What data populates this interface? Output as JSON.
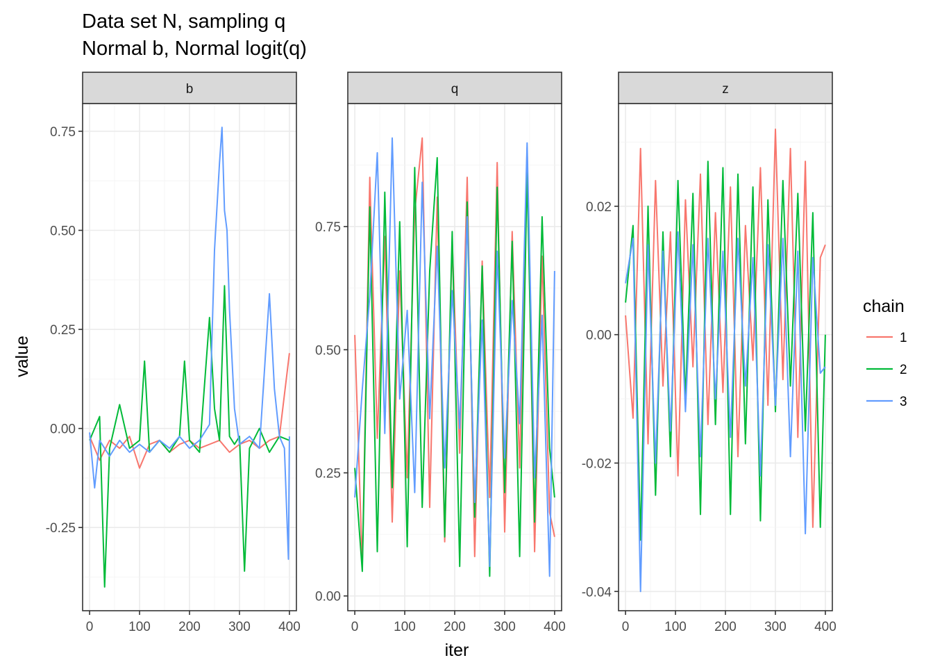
{
  "chart_data": {
    "type": "line",
    "title": "Data set N, sampling q",
    "subtitle": "Normal b, Normal logit(q)",
    "xlabel": "iter",
    "ylabel": "value",
    "legend": {
      "title": "chain",
      "placement": "right",
      "entries": [
        {
          "label": "1",
          "color": "#F8766D"
        },
        {
          "label": "2",
          "color": "#00BA38"
        },
        {
          "label": "3",
          "color": "#619CFF"
        }
      ]
    },
    "grid": true,
    "xlim": [
      -14,
      414
    ],
    "xticks": [
      0,
      100,
      200,
      300,
      400
    ],
    "panels": [
      {
        "strip": "b",
        "ylim": [
          -0.46,
          0.82
        ],
        "yticks": [
          -0.25,
          0.0,
          0.25,
          0.5,
          0.75
        ],
        "yticklabels": [
          "-0.25",
          "0.00",
          "0.25",
          "0.50",
          "0.75"
        ],
        "series": [
          {
            "name": "1",
            "x": [
              0,
              20,
              40,
              60,
              80,
              100,
              120,
              140,
              160,
              180,
              200,
              220,
              240,
              260,
              280,
              300,
              320,
              340,
              360,
              380,
              400
            ],
            "y": [
              -0.02,
              -0.08,
              -0.03,
              -0.05,
              -0.02,
              -0.1,
              -0.04,
              -0.03,
              -0.06,
              -0.04,
              -0.03,
              -0.05,
              -0.04,
              -0.03,
              -0.06,
              -0.04,
              -0.03,
              -0.05,
              -0.03,
              -0.02,
              0.19
            ]
          },
          {
            "name": "2",
            "x": [
              0,
              20,
              30,
              40,
              60,
              80,
              100,
              110,
              120,
              140,
              160,
              180,
              190,
              200,
              220,
              240,
              250,
              260,
              270,
              280,
              290,
              300,
              310,
              320,
              340,
              360,
              380,
              400
            ],
            "y": [
              -0.03,
              0.03,
              -0.4,
              -0.05,
              0.06,
              -0.05,
              -0.03,
              0.17,
              -0.06,
              -0.03,
              -0.06,
              -0.02,
              0.17,
              -0.03,
              -0.06,
              0.28,
              0.05,
              -0.03,
              0.36,
              -0.02,
              -0.04,
              -0.02,
              -0.36,
              -0.05,
              0.0,
              -0.06,
              -0.02,
              -0.03
            ]
          },
          {
            "name": "3",
            "x": [
              0,
              10,
              20,
              40,
              60,
              80,
              100,
              120,
              140,
              160,
              180,
              200,
              220,
              240,
              250,
              260,
              265,
              270,
              275,
              280,
              290,
              300,
              320,
              340,
              360,
              370,
              380,
              390,
              398,
              400
            ],
            "y": [
              -0.01,
              -0.15,
              -0.03,
              -0.07,
              -0.03,
              -0.06,
              -0.04,
              -0.06,
              -0.03,
              -0.05,
              -0.02,
              -0.05,
              -0.03,
              0.01,
              0.45,
              0.67,
              0.76,
              0.55,
              0.5,
              0.3,
              0.05,
              -0.04,
              -0.02,
              -0.05,
              0.34,
              0.1,
              -0.02,
              -0.05,
              -0.33,
              -0.02
            ]
          }
        ]
      },
      {
        "strip": "q",
        "ylim": [
          -0.03,
          1.0
        ],
        "yticks": [
          0.0,
          0.25,
          0.5,
          0.75
        ],
        "yticklabels": [
          "0.00",
          "0.25",
          "0.50",
          "0.75"
        ],
        "series": [
          {
            "name": "1",
            "x": [
              0,
              15,
              30,
              45,
              60,
              75,
              90,
              105,
              120,
              135,
              150,
              165,
              180,
              195,
              210,
              225,
              240,
              255,
              270,
              285,
              300,
              315,
              330,
              345,
              360,
              375,
              390,
              400
            ],
            "y": [
              0.53,
              0.06,
              0.85,
              0.32,
              0.73,
              0.15,
              0.66,
              0.24,
              0.78,
              0.93,
              0.18,
              0.81,
              0.11,
              0.72,
              0.29,
              0.85,
              0.08,
              0.68,
              0.2,
              0.88,
              0.13,
              0.74,
              0.26,
              0.91,
              0.09,
              0.69,
              0.17,
              0.12
            ]
          },
          {
            "name": "2",
            "x": [
              0,
              15,
              30,
              45,
              60,
              75,
              90,
              105,
              120,
              135,
              150,
              165,
              180,
              195,
              210,
              225,
              240,
              255,
              270,
              285,
              300,
              315,
              330,
              345,
              360,
              375,
              390,
              400
            ],
            "y": [
              0.26,
              0.05,
              0.79,
              0.09,
              0.82,
              0.22,
              0.76,
              0.1,
              0.87,
              0.18,
              0.66,
              0.89,
              0.12,
              0.74,
              0.06,
              0.8,
              0.16,
              0.67,
              0.04,
              0.83,
              0.21,
              0.72,
              0.08,
              0.86,
              0.15,
              0.77,
              0.3,
              0.2
            ]
          },
          {
            "name": "3",
            "x": [
              0,
              15,
              30,
              45,
              60,
              75,
              90,
              105,
              120,
              135,
              150,
              165,
              180,
              195,
              210,
              225,
              240,
              255,
              270,
              285,
              300,
              315,
              330,
              345,
              360,
              375,
              390,
              400
            ],
            "y": [
              0.2,
              0.42,
              0.61,
              0.9,
              0.33,
              0.93,
              0.4,
              0.58,
              0.21,
              0.84,
              0.36,
              0.71,
              0.26,
              0.62,
              0.34,
              0.77,
              0.19,
              0.56,
              0.06,
              0.7,
              0.28,
              0.6,
              0.35,
              0.92,
              0.24,
              0.57,
              0.04,
              0.66
            ]
          }
        ]
      },
      {
        "strip": "z",
        "ylim": [
          -0.043,
          0.036
        ],
        "yticks": [
          -0.04,
          -0.02,
          0.0,
          0.02
        ],
        "yticklabels": [
          "-0.04",
          "-0.02",
          "0.00",
          "0.02"
        ],
        "series": [
          {
            "name": "1",
            "x": [
              0,
              15,
              30,
              45,
              60,
              75,
              90,
              105,
              120,
              135,
              150,
              165,
              180,
              195,
              210,
              225,
              240,
              255,
              270,
              285,
              300,
              315,
              330,
              345,
              360,
              375,
              390,
              400
            ],
            "y": [
              0.003,
              -0.013,
              0.029,
              -0.017,
              0.024,
              -0.008,
              0.016,
              -0.022,
              0.021,
              -0.005,
              0.025,
              -0.014,
              0.019,
              -0.009,
              0.023,
              -0.019,
              0.017,
              -0.004,
              0.026,
              -0.011,
              0.032,
              -0.007,
              0.029,
              -0.016,
              0.027,
              -0.03,
              0.012,
              0.014
            ]
          },
          {
            "name": "2",
            "x": [
              0,
              15,
              30,
              45,
              60,
              75,
              90,
              105,
              120,
              135,
              150,
              165,
              180,
              195,
              210,
              225,
              240,
              255,
              270,
              285,
              300,
              315,
              330,
              345,
              360,
              375,
              390,
              400
            ],
            "y": [
              0.005,
              0.017,
              -0.032,
              0.02,
              -0.025,
              0.016,
              -0.019,
              0.024,
              -0.01,
              0.022,
              -0.028,
              0.027,
              -0.014,
              0.026,
              -0.028,
              0.025,
              -0.017,
              0.023,
              -0.029,
              0.021,
              -0.012,
              0.024,
              -0.008,
              0.022,
              -0.015,
              0.019,
              -0.03,
              0.0
            ]
          },
          {
            "name": "3",
            "x": [
              0,
              15,
              30,
              45,
              60,
              75,
              90,
              105,
              120,
              135,
              150,
              165,
              180,
              195,
              210,
              225,
              240,
              255,
              270,
              285,
              300,
              315,
              330,
              345,
              360,
              375,
              390,
              400
            ],
            "y": [
              0.008,
              0.015,
              -0.04,
              0.014,
              -0.02,
              0.013,
              -0.015,
              0.016,
              -0.012,
              0.014,
              -0.019,
              0.015,
              -0.01,
              0.013,
              -0.016,
              0.015,
              -0.008,
              0.012,
              -0.022,
              0.014,
              -0.011,
              0.015,
              -0.019,
              0.013,
              -0.031,
              0.012,
              -0.006,
              -0.005
            ]
          }
        ]
      }
    ]
  }
}
